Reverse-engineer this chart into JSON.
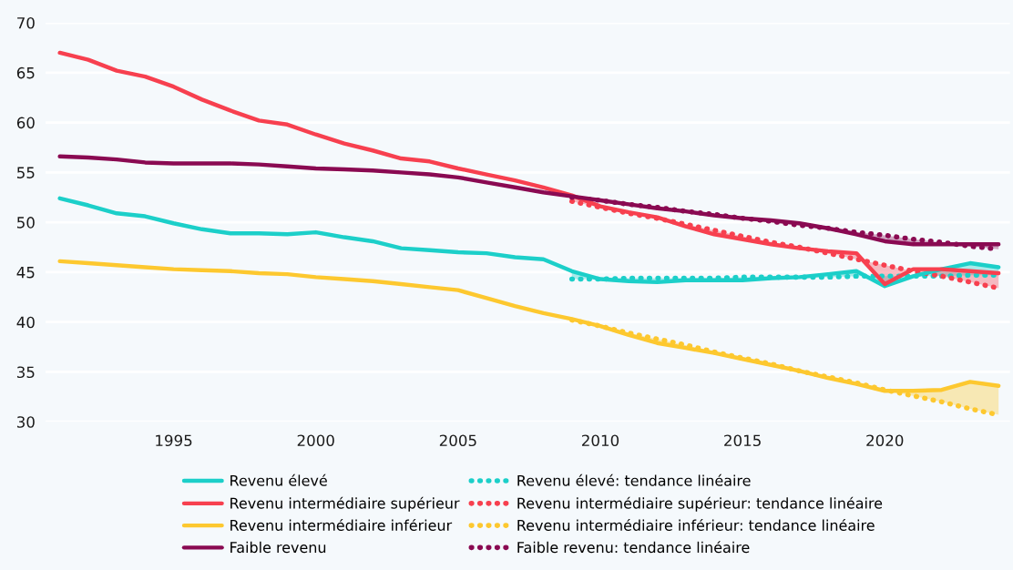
{
  "chart_data": {
    "type": "line",
    "x": [
      1991,
      1992,
      1993,
      1994,
      1995,
      1996,
      1997,
      1998,
      1999,
      2000,
      2001,
      2002,
      2003,
      2004,
      2005,
      2006,
      2007,
      2008,
      2009,
      2010,
      2011,
      2012,
      2013,
      2014,
      2015,
      2016,
      2017,
      2018,
      2019,
      2020,
      2021,
      2022,
      2023,
      2024
    ],
    "series": [
      {
        "name": "Revenu élevé",
        "color": "#1ccfc9",
        "line_style": "solid",
        "values": [
          52.4,
          51.7,
          50.9,
          50.6,
          49.9,
          49.3,
          48.9,
          48.9,
          48.8,
          49.0,
          48.5,
          48.1,
          47.4,
          47.2,
          47.0,
          46.9,
          46.5,
          46.3,
          45.1,
          44.3,
          44.1,
          44.0,
          44.2,
          44.2,
          44.2,
          44.4,
          44.5,
          44.8,
          45.1,
          43.6,
          44.6,
          45.3,
          45.9,
          45.5
        ]
      },
      {
        "name": "Revenu intermédiaire supérieur",
        "color": "#f7404f",
        "line_style": "solid",
        "values": [
          67.0,
          66.3,
          65.2,
          64.6,
          63.6,
          62.3,
          61.2,
          60.2,
          59.8,
          58.8,
          57.9,
          57.2,
          56.4,
          56.1,
          55.4,
          54.8,
          54.2,
          53.5,
          52.7,
          51.6,
          51.0,
          50.5,
          49.6,
          48.8,
          48.3,
          47.8,
          47.4,
          47.1,
          46.9,
          43.8,
          45.3,
          45.3,
          45.1,
          44.9
        ]
      },
      {
        "name": "Revenu intermédiaire inférieur",
        "color": "#fdc82f",
        "line_style": "solid",
        "values": [
          46.1,
          45.9,
          45.7,
          45.5,
          45.3,
          45.2,
          45.1,
          44.9,
          44.8,
          44.5,
          44.3,
          44.1,
          43.8,
          43.5,
          43.2,
          42.4,
          41.6,
          40.9,
          40.3,
          39.6,
          38.7,
          37.9,
          37.4,
          36.9,
          36.3,
          35.7,
          35.1,
          34.4,
          33.8,
          33.1,
          33.1,
          33.2,
          34.0,
          33.6
        ]
      },
      {
        "name": "Faible revenu",
        "color": "#8a0a52",
        "line_style": "solid",
        "values": [
          56.6,
          56.5,
          56.3,
          56.0,
          55.9,
          55.9,
          55.9,
          55.8,
          55.6,
          55.4,
          55.3,
          55.2,
          55.0,
          54.8,
          54.5,
          54.0,
          53.5,
          53.0,
          52.6,
          52.2,
          51.8,
          51.4,
          51.1,
          50.7,
          50.4,
          50.2,
          49.9,
          49.4,
          48.8,
          48.1,
          47.8,
          47.8,
          47.8,
          47.8
        ]
      },
      {
        "name": "Revenu élevé: tendance linéaire",
        "color": "#1ccfc9",
        "line_style": "dotted",
        "x": [
          2009,
          2010,
          2011,
          2012,
          2013,
          2014,
          2015,
          2016,
          2017,
          2018,
          2019,
          2020,
          2021,
          2022,
          2023,
          2024
        ],
        "values": [
          44.3,
          44.3,
          44.4,
          44.4,
          44.4,
          44.4,
          44.5,
          44.5,
          44.5,
          44.5,
          44.6,
          44.6,
          44.6,
          44.6,
          44.7,
          44.7
        ],
        "lower": [
          44.3,
          44.3,
          44.4,
          44.4,
          44.4,
          44.4,
          44.5,
          44.5,
          44.5,
          44.5,
          44.6,
          44.6,
          44.6,
          44.6,
          44.7,
          44.7
        ],
        "upper": [
          45.1,
          44.3,
          44.1,
          44.0,
          44.2,
          44.2,
          44.2,
          44.4,
          44.5,
          44.8,
          45.1,
          43.6,
          44.6,
          45.3,
          45.9,
          45.5
        ]
      },
      {
        "name": "Revenu intermédiaire supérieur: tendance linéaire",
        "color": "#f7404f",
        "line_style": "dotted",
        "x": [
          2009,
          2010,
          2011,
          2012,
          2013,
          2014,
          2015,
          2016,
          2017,
          2018,
          2019,
          2020,
          2021,
          2022,
          2023,
          2024
        ],
        "values": [
          52.1,
          51.5,
          50.9,
          50.4,
          49.8,
          49.2,
          48.6,
          48.0,
          47.5,
          46.9,
          46.3,
          45.7,
          45.1,
          44.6,
          44.0,
          43.4
        ],
        "lower": [
          52.1,
          51.5,
          50.9,
          50.4,
          49.8,
          49.2,
          48.6,
          48.0,
          47.5,
          46.9,
          46.3,
          45.7,
          45.1,
          44.6,
          44.0,
          43.4
        ],
        "upper": [
          52.7,
          51.6,
          51.0,
          50.5,
          49.6,
          48.8,
          48.3,
          47.8,
          47.4,
          47.1,
          46.9,
          43.8,
          45.3,
          45.3,
          45.1,
          44.9
        ]
      },
      {
        "name": "Revenu intermédiaire inférieur: tendance linéaire",
        "color": "#fdc82f",
        "line_style": "dotted",
        "x": [
          2009,
          2010,
          2011,
          2012,
          2013,
          2014,
          2015,
          2016,
          2017,
          2018,
          2019,
          2020,
          2021,
          2022,
          2023,
          2024
        ],
        "values": [
          40.2,
          39.6,
          38.9,
          38.3,
          37.7,
          37.0,
          36.4,
          35.8,
          35.1,
          34.5,
          33.9,
          33.2,
          32.6,
          32.0,
          31.3,
          30.7
        ],
        "lower": [
          40.2,
          39.6,
          38.9,
          38.3,
          37.7,
          37.0,
          36.4,
          35.8,
          35.1,
          34.5,
          33.9,
          33.2,
          32.6,
          32.0,
          31.3,
          30.7
        ],
        "upper": [
          40.3,
          39.6,
          38.7,
          37.9,
          37.4,
          36.9,
          36.3,
          35.7,
          35.1,
          34.4,
          33.8,
          33.1,
          33.1,
          33.2,
          34.0,
          33.6
        ]
      },
      {
        "name": "Faible revenu: tendance linéaire",
        "color": "#8a0a52",
        "line_style": "dotted",
        "x": [
          2009,
          2010,
          2011,
          2012,
          2013,
          2014,
          2015,
          2016,
          2017,
          2018,
          2019,
          2020,
          2021,
          2022,
          2023,
          2024
        ],
        "values": [
          52.5,
          52.2,
          51.8,
          51.5,
          51.1,
          50.8,
          50.4,
          50.1,
          49.7,
          49.4,
          49.0,
          48.7,
          48.3,
          48.0,
          47.6,
          47.3
        ],
        "lower": [
          52.5,
          52.2,
          51.8,
          51.5,
          51.1,
          50.8,
          50.4,
          50.1,
          49.7,
          49.4,
          49.0,
          48.7,
          48.3,
          48.0,
          47.6,
          47.3
        ],
        "upper": [
          52.6,
          52.2,
          51.8,
          51.4,
          51.1,
          50.7,
          50.4,
          50.2,
          49.9,
          49.4,
          48.8,
          48.1,
          47.8,
          47.8,
          47.8,
          47.8
        ]
      }
    ],
    "xlim": [
      1990.5,
      2024.4
    ],
    "xticks": [
      1995,
      2000,
      2005,
      2010,
      2015,
      2020
    ],
    "ylim": [
      30,
      70
    ],
    "yticks": [
      30,
      35,
      40,
      45,
      50,
      55,
      60,
      65,
      70
    ],
    "grid": "y",
    "legend": "bottom",
    "marker": "none"
  }
}
